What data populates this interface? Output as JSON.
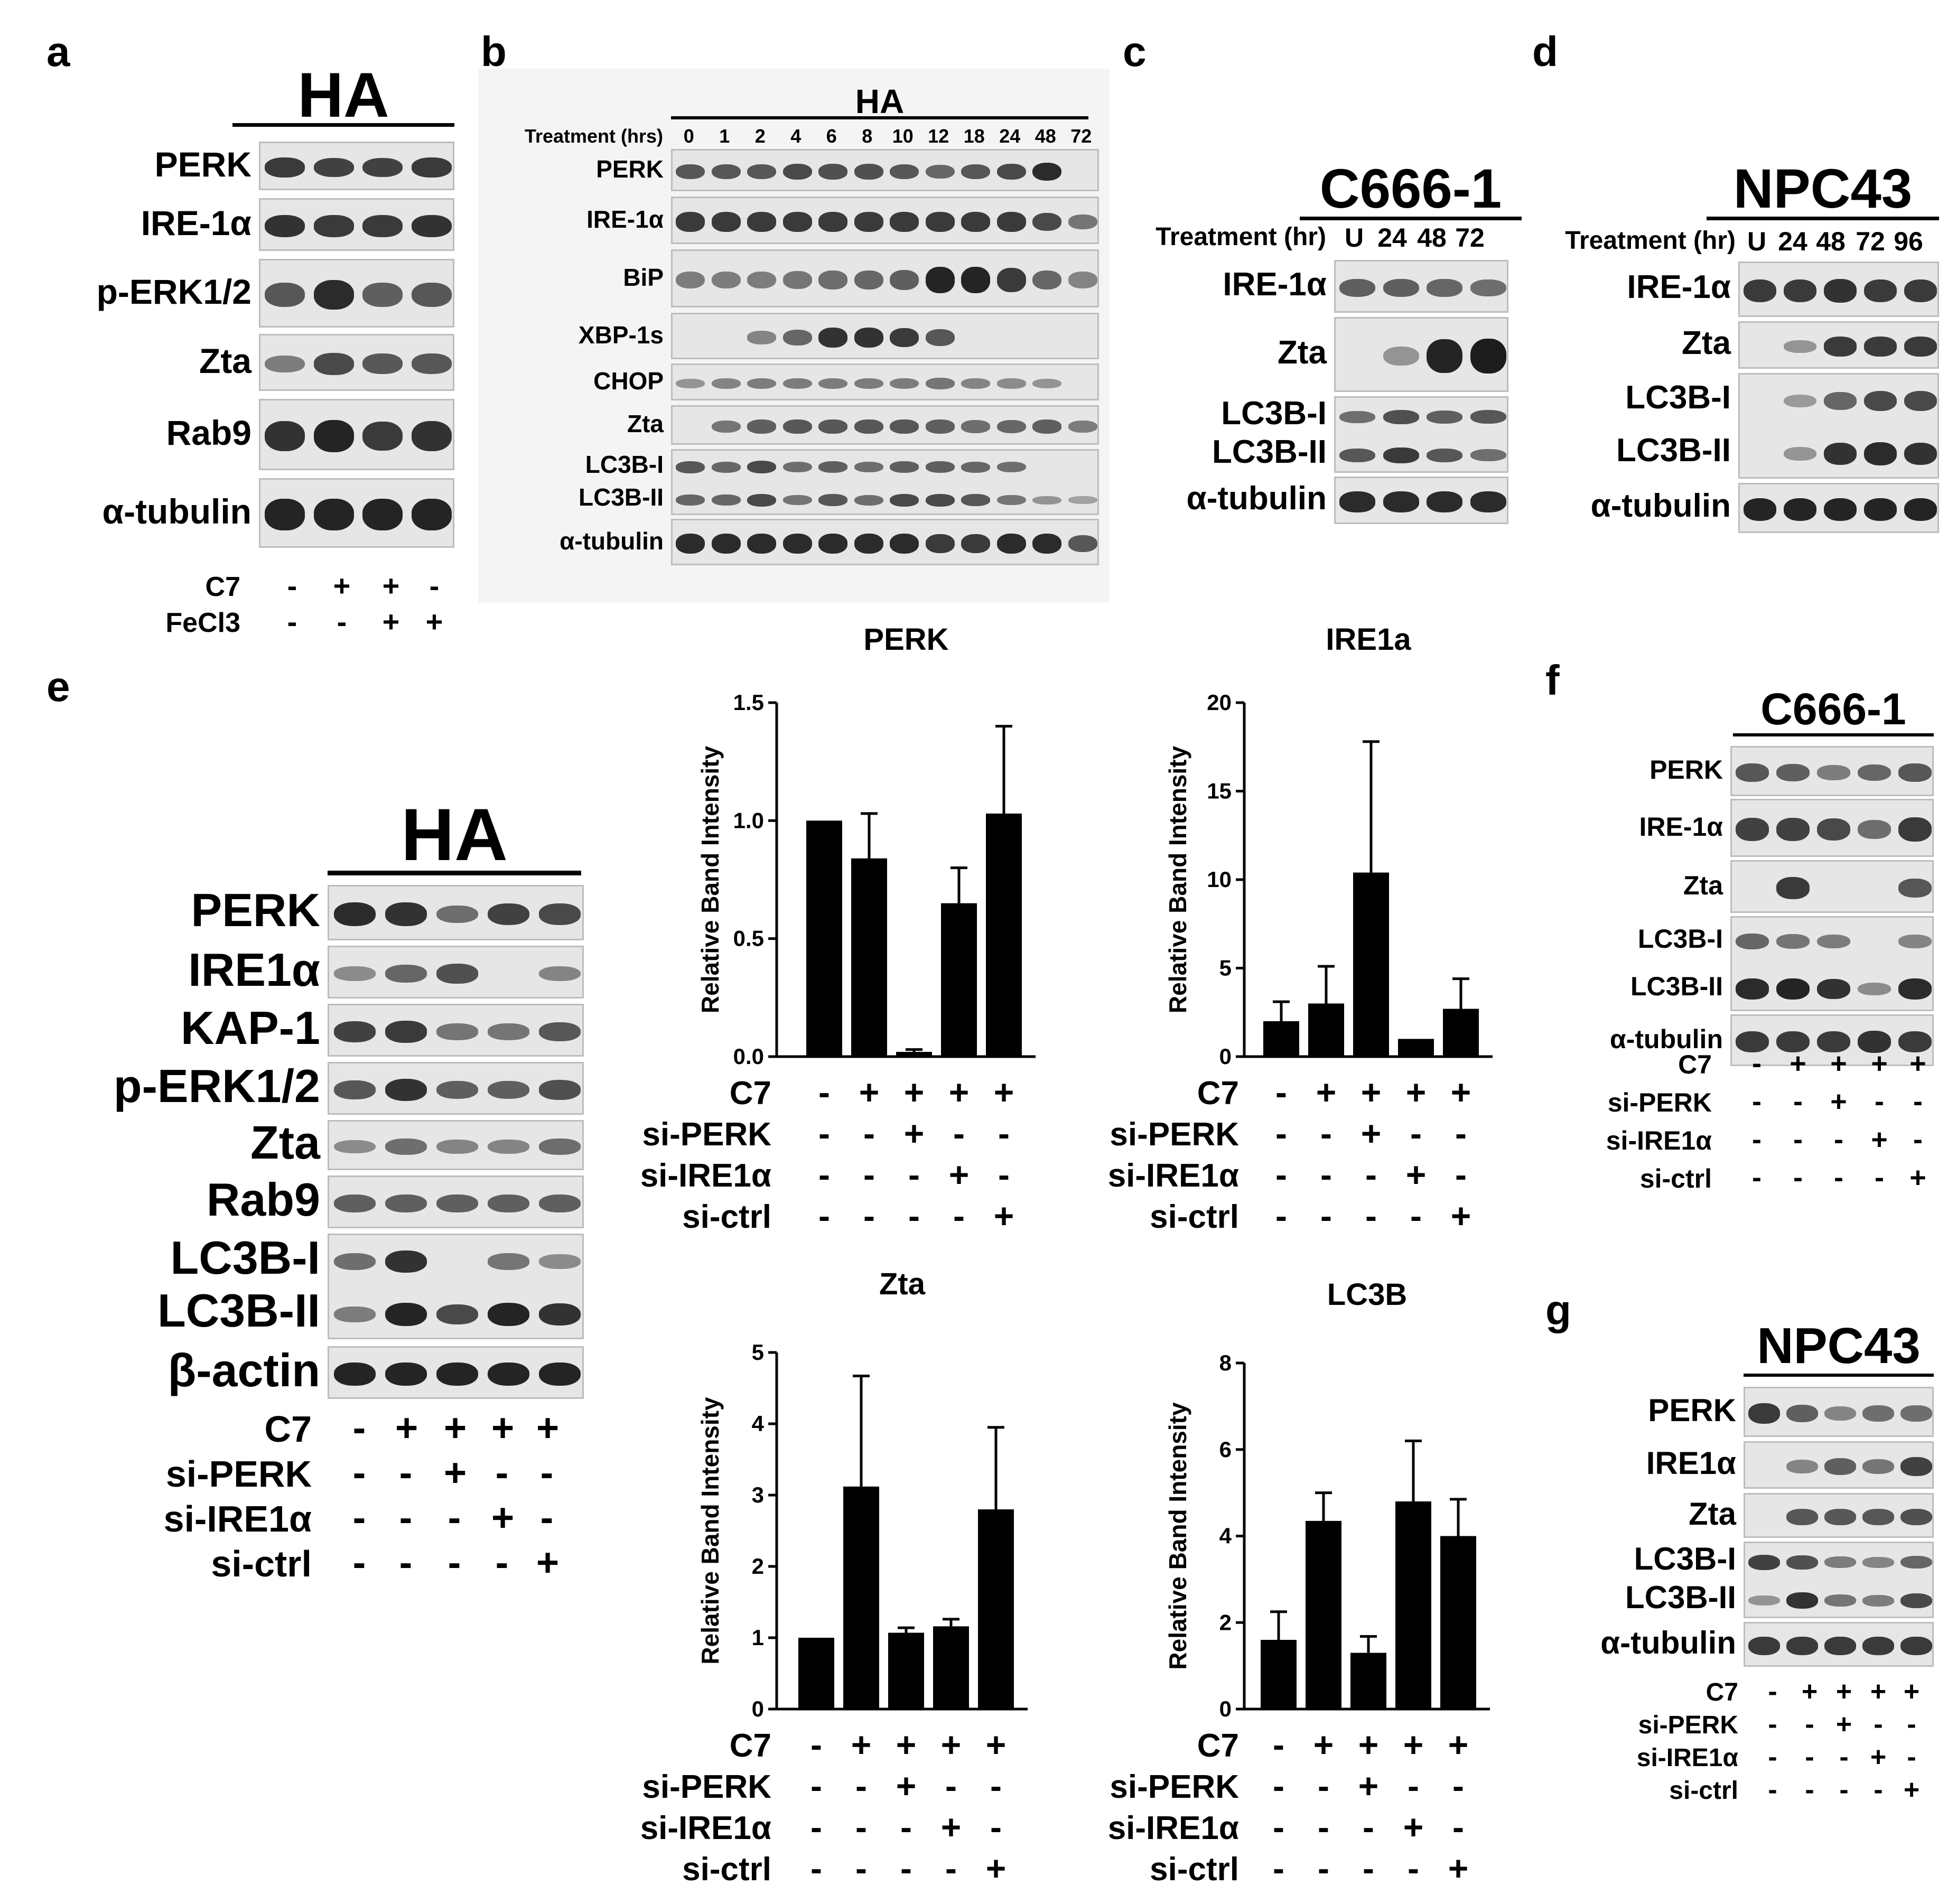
{
  "panels": {
    "a": {
      "label": "a",
      "title": "HA",
      "rows": [
        "PERK",
        "IRE-1α",
        "p-ERK1/2",
        "Zta",
        "Rab9",
        "α-tubulin"
      ],
      "conditions": [
        {
          "name": "C7",
          "values": [
            "-",
            "+",
            "+",
            "-"
          ]
        },
        {
          "name": "FeCl3",
          "values": [
            "-",
            "-",
            "+",
            "+"
          ]
        }
      ]
    },
    "b": {
      "label": "b",
      "title": "HA",
      "treatment_label": "Treatment (hrs)",
      "timepoints": [
        "0",
        "1",
        "2",
        "4",
        "6",
        "8",
        "10",
        "12",
        "18",
        "24",
        "48",
        "72"
      ],
      "rows": [
        "PERK",
        "IRE-1α",
        "BiP",
        "XBP-1s",
        "CHOP",
        "Zta",
        "LC3B-I",
        "LC3B-II",
        "α-tubulin"
      ]
    },
    "c": {
      "label": "c",
      "title": "C666-1",
      "treatment_label": "Treatment (hr)",
      "timepoints": [
        "U",
        "24",
        "48",
        "72"
      ],
      "rows": [
        "IRE-1α",
        "Zta",
        "LC3B-I",
        "LC3B-II",
        "α-tubulin"
      ]
    },
    "d": {
      "label": "d",
      "title": "NPC43",
      "treatment_label": "Treatment (hr)",
      "timepoints": [
        "U",
        "24",
        "48",
        "72",
        "96"
      ],
      "rows": [
        "IRE-1α",
        "Zta",
        "LC3B-I",
        "LC3B-II",
        "α-tubulin"
      ]
    },
    "e": {
      "label": "e",
      "title": "HA",
      "rows": [
        "PERK",
        "IRE1α",
        "KAP-1",
        "p-ERK1/2",
        "Zta",
        "Rab9",
        "LC3B-I",
        "LC3B-II",
        "β-actin"
      ]
    },
    "f": {
      "label": "f",
      "title": "C666-1",
      "rows": [
        "PERK",
        "IRE-1α",
        "Zta",
        "LC3B-I",
        "LC3B-II",
        "α-tubulin"
      ]
    },
    "g": {
      "label": "g",
      "title": "NPC43",
      "rows": [
        "PERK",
        "IRE1α",
        "Zta",
        "LC3B-I",
        "LC3B-II",
        "α-tubulin"
      ]
    }
  },
  "si_conditions": [
    {
      "name": "C7",
      "values": [
        "-",
        "+",
        "+",
        "+",
        "+"
      ]
    },
    {
      "name": "si-PERK",
      "values": [
        "-",
        "-",
        "+",
        "-",
        "-"
      ]
    },
    {
      "name": "si-IRE1α",
      "values": [
        "-",
        "-",
        "-",
        "+",
        "-"
      ]
    },
    {
      "name": "si-ctrl",
      "values": [
        "-",
        "-",
        "-",
        "-",
        "+"
      ]
    }
  ],
  "chart_data": [
    {
      "type": "bar",
      "title": "PERK",
      "ylabel": "Relative Band Intensity",
      "ylim": [
        0,
        1.5
      ],
      "yticks": [
        "0.0",
        "0.5",
        "1.0",
        "1.5"
      ],
      "values": [
        1.0,
        0.84,
        0.02,
        0.65,
        1.03
      ],
      "errors": [
        0.0,
        0.19,
        0.01,
        0.15,
        0.37
      ]
    },
    {
      "type": "bar",
      "title": "IRE1a",
      "ylabel": "Relative Band Intensity",
      "ylim": [
        0,
        20
      ],
      "yticks": [
        "0",
        "5",
        "10",
        "15",
        "20"
      ],
      "values": [
        2.0,
        3.0,
        10.4,
        1.0,
        2.7
      ],
      "errors": [
        1.1,
        2.1,
        7.4,
        0.0,
        1.7
      ]
    },
    {
      "type": "bar",
      "title": "Zta",
      "ylabel": "Relative Band Intensity",
      "ylim": [
        0,
        5
      ],
      "yticks": [
        "0",
        "1",
        "2",
        "3",
        "4",
        "5"
      ],
      "values": [
        1.0,
        3.12,
        1.07,
        1.16,
        2.8
      ],
      "errors": [
        0.0,
        1.55,
        0.07,
        0.1,
        1.15
      ]
    },
    {
      "type": "bar",
      "title": "LC3B",
      "ylabel": "Relative Band Intensity",
      "ylim": [
        0,
        8
      ],
      "yticks": [
        "0",
        "2",
        "4",
        "6",
        "8"
      ],
      "values": [
        1.6,
        4.35,
        1.3,
        4.8,
        4.0
      ],
      "errors": [
        0.65,
        0.65,
        0.38,
        1.4,
        0.85
      ]
    }
  ]
}
